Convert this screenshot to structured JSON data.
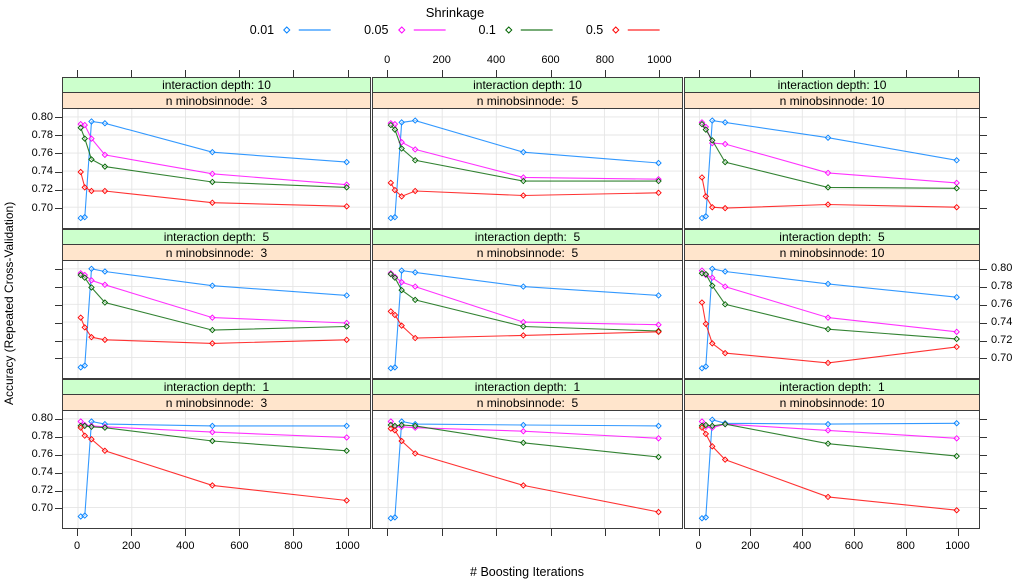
{
  "legend": {
    "title": "Shrinkage",
    "entries": [
      {
        "label": "0.01",
        "color": "#0080ff"
      },
      {
        "label": "0.05",
        "color": "#ff00ff"
      },
      {
        "label": "0.1",
        "color": "#006400"
      },
      {
        "label": "0.5",
        "color": "#ff0000"
      }
    ]
  },
  "axes": {
    "x_label": "# Boosting Iterations",
    "y_label": "Accuracy (Repeated Cross-Validation)",
    "x_ticks": [
      0,
      200,
      400,
      600,
      800,
      1000
    ],
    "y_ticks": [
      0.8,
      0.78,
      0.76,
      0.74,
      0.72,
      0.7
    ],
    "y_tick_labels": [
      "0.80",
      "0.78",
      "0.76",
      "0.74",
      "0.72",
      "0.70"
    ]
  },
  "chart_data": {
    "type": "line",
    "legend_title": "Shrinkage",
    "legend_position": "top",
    "grid": "on",
    "x": [
      10,
      25,
      50,
      100,
      500,
      1000
    ],
    "xlabel": "# Boosting Iterations",
    "ylabel": "Accuracy (Repeated Cross-Validation)",
    "xlim": [
      -56,
      1056
    ],
    "ylim": [
      0.677,
      0.809
    ],
    "x_tick_values": [
      0,
      200,
      400,
      600,
      800,
      1000
    ],
    "y_tick_values": [
      0.7,
      0.72,
      0.74,
      0.76,
      0.78,
      0.8
    ],
    "series_names": [
      "0.01",
      "0.05",
      "0.1",
      "0.5"
    ],
    "series_colors": [
      "#0080ff",
      "#ff00ff",
      "#006400",
      "#ff0000"
    ],
    "facet_rows_label": "interaction depth",
    "facet_cols_label": "n minobsinnode",
    "facets": [
      {
        "interaction_depth": 10,
        "n_minobsinnode": 3,
        "strip_depth": "interaction depth: 10",
        "strip_minobs": "n minobsinnode:  3",
        "values": [
          [
            0.688,
            0.689,
            0.795,
            0.793,
            0.761,
            0.75
          ],
          [
            0.792,
            0.791,
            0.776,
            0.758,
            0.737,
            0.725
          ],
          [
            0.788,
            0.776,
            0.753,
            0.745,
            0.728,
            0.722
          ],
          [
            0.739,
            0.722,
            0.718,
            0.718,
            0.705,
            0.701
          ]
        ]
      },
      {
        "interaction_depth": 10,
        "n_minobsinnode": 5,
        "strip_depth": "interaction depth: 10",
        "strip_minobs": "n minobsinnode:  5",
        "values": [
          [
            0.688,
            0.689,
            0.794,
            0.796,
            0.761,
            0.749
          ],
          [
            0.793,
            0.792,
            0.772,
            0.764,
            0.733,
            0.731
          ],
          [
            0.791,
            0.786,
            0.765,
            0.752,
            0.729,
            0.729
          ],
          [
            0.727,
            0.719,
            0.712,
            0.718,
            0.713,
            0.716
          ]
        ]
      },
      {
        "interaction_depth": 10,
        "n_minobsinnode": 10,
        "strip_depth": "interaction depth: 10",
        "strip_minobs": "n minobsinnode: 10",
        "values": [
          [
            0.688,
            0.69,
            0.796,
            0.794,
            0.777,
            0.752
          ],
          [
            0.794,
            0.789,
            0.771,
            0.77,
            0.738,
            0.727
          ],
          [
            0.792,
            0.786,
            0.774,
            0.75,
            0.722,
            0.721
          ],
          [
            0.733,
            0.712,
            0.7,
            0.699,
            0.703,
            0.7
          ]
        ]
      },
      {
        "interaction_depth": 5,
        "n_minobsinnode": 3,
        "strip_depth": "interaction depth:  5",
        "strip_minobs": "n minobsinnode:  3",
        "values": [
          [
            0.689,
            0.691,
            0.8,
            0.797,
            0.781,
            0.77
          ],
          [
            0.795,
            0.793,
            0.787,
            0.782,
            0.745,
            0.739
          ],
          [
            0.793,
            0.79,
            0.779,
            0.762,
            0.731,
            0.735
          ],
          [
            0.745,
            0.734,
            0.723,
            0.72,
            0.716,
            0.72
          ]
        ]
      },
      {
        "interaction_depth": 5,
        "n_minobsinnode": 5,
        "strip_depth": "interaction depth:  5",
        "strip_minobs": "n minobsinnode:  5",
        "values": [
          [
            0.688,
            0.689,
            0.798,
            0.796,
            0.78,
            0.77
          ],
          [
            0.795,
            0.791,
            0.785,
            0.78,
            0.74,
            0.737
          ],
          [
            0.794,
            0.79,
            0.776,
            0.765,
            0.735,
            0.73
          ],
          [
            0.752,
            0.748,
            0.736,
            0.722,
            0.725,
            0.729
          ]
        ]
      },
      {
        "interaction_depth": 5,
        "n_minobsinnode": 10,
        "strip_depth": "interaction depth:  5",
        "strip_minobs": "n minobsinnode: 10",
        "values": [
          [
            0.688,
            0.69,
            0.8,
            0.797,
            0.783,
            0.768
          ],
          [
            0.798,
            0.793,
            0.79,
            0.78,
            0.745,
            0.729
          ],
          [
            0.795,
            0.794,
            0.781,
            0.76,
            0.732,
            0.721
          ],
          [
            0.762,
            0.738,
            0.716,
            0.705,
            0.694,
            0.712
          ]
        ]
      },
      {
        "interaction_depth": 1,
        "n_minobsinnode": 3,
        "strip_depth": "interaction depth:  1",
        "strip_minobs": "n minobsinnode:  3",
        "values": [
          [
            0.69,
            0.691,
            0.797,
            0.794,
            0.792,
            0.792
          ],
          [
            0.797,
            0.793,
            0.792,
            0.791,
            0.785,
            0.779
          ],
          [
            0.792,
            0.792,
            0.791,
            0.79,
            0.775,
            0.764
          ],
          [
            0.79,
            0.781,
            0.777,
            0.764,
            0.725,
            0.708
          ]
        ]
      },
      {
        "interaction_depth": 1,
        "n_minobsinnode": 5,
        "strip_depth": "interaction depth:  1",
        "strip_minobs": "n minobsinnode:  5",
        "values": [
          [
            0.688,
            0.689,
            0.797,
            0.794,
            0.793,
            0.792
          ],
          [
            0.797,
            0.791,
            0.791,
            0.79,
            0.786,
            0.778
          ],
          [
            0.793,
            0.792,
            0.793,
            0.792,
            0.773,
            0.757
          ],
          [
            0.789,
            0.787,
            0.775,
            0.761,
            0.725,
            0.695
          ]
        ]
      },
      {
        "interaction_depth": 1,
        "n_minobsinnode": 10,
        "strip_depth": "interaction depth:  1",
        "strip_minobs": "n minobsinnode: 10",
        "values": [
          [
            0.688,
            0.689,
            0.799,
            0.795,
            0.794,
            0.795
          ],
          [
            0.797,
            0.791,
            0.79,
            0.794,
            0.787,
            0.778
          ],
          [
            0.792,
            0.793,
            0.792,
            0.794,
            0.772,
            0.758
          ],
          [
            0.79,
            0.783,
            0.769,
            0.754,
            0.712,
            0.697
          ]
        ]
      }
    ],
    "colors": {
      "strip_depth_bg": "#ccffcc",
      "strip_minobs_bg": "#ffe5cc",
      "gridline": "#e5e5e5",
      "panel_border": "#3c3c3c"
    }
  }
}
